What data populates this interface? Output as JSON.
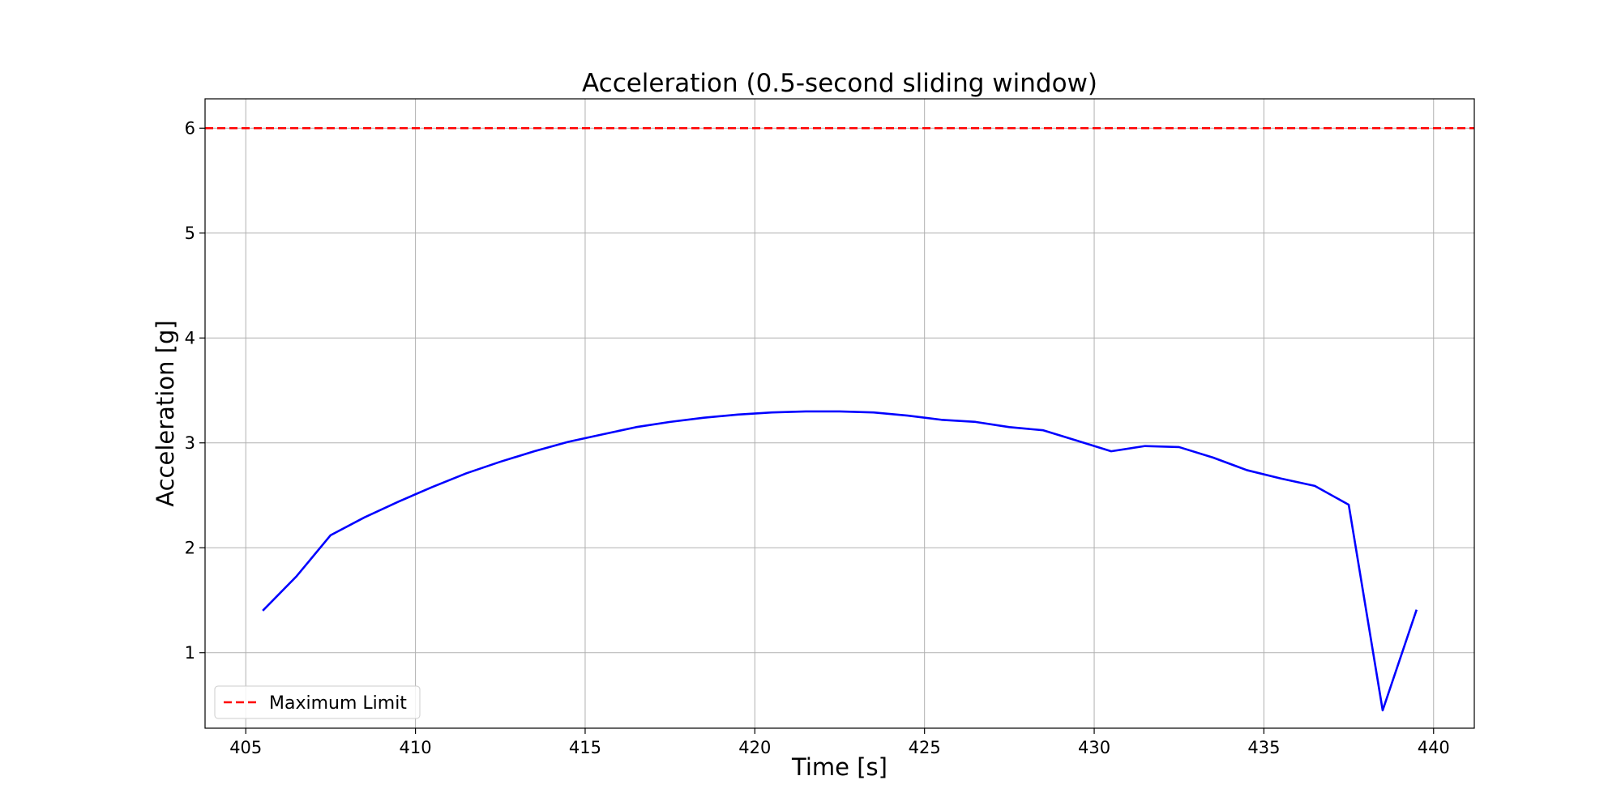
{
  "chart_data": {
    "type": "line",
    "title": "Acceleration (0.5-second sliding window)",
    "xlabel": "Time [s]",
    "ylabel": "Acceleration [g]",
    "xlim": [
      403.8,
      441.2
    ],
    "ylim": [
      0.28,
      6.28
    ],
    "x_ticks": [
      405,
      410,
      415,
      420,
      425,
      430,
      435,
      440
    ],
    "x_tick_labels": [
      "405",
      "410",
      "415",
      "420",
      "425",
      "430",
      "435",
      "440"
    ],
    "y_ticks": [
      1,
      2,
      3,
      4,
      5,
      6
    ],
    "y_tick_labels": [
      "1",
      "2",
      "3",
      "4",
      "5",
      "6"
    ],
    "grid": true,
    "legend_position": "lower-left",
    "series": [
      {
        "color": "#0000ff",
        "line_style": "solid",
        "x": [
          405.5,
          406.5,
          407.5,
          408.5,
          409.5,
          410.5,
          411.5,
          412.5,
          413.5,
          414.5,
          415.5,
          416.5,
          417.5,
          418.5,
          419.5,
          420.5,
          421.5,
          422.5,
          423.5,
          424.5,
          425.5,
          426.5,
          427.5,
          428.5,
          429.5,
          430.5,
          431.5,
          432.5,
          433.5,
          434.5,
          435.5,
          436.5,
          437.5,
          438.5,
          439.5
        ],
        "y": [
          1.4,
          1.73,
          2.12,
          2.29,
          2.44,
          2.58,
          2.71,
          2.82,
          2.92,
          3.01,
          3.08,
          3.15,
          3.2,
          3.24,
          3.27,
          3.29,
          3.3,
          3.3,
          3.29,
          3.26,
          3.22,
          3.2,
          3.15,
          3.12,
          3.02,
          2.92,
          2.97,
          2.96,
          2.86,
          2.74,
          2.66,
          2.59,
          2.41,
          0.45,
          1.41
        ]
      },
      {
        "name": "Maximum Limit",
        "color": "#ff0000",
        "line_style": "dashed",
        "x": [
          403.8,
          441.2
        ],
        "y": [
          6,
          6
        ]
      }
    ],
    "legend": [
      {
        "label": "Maximum Limit",
        "color": "#ff0000",
        "line_style": "dashed"
      }
    ]
  }
}
